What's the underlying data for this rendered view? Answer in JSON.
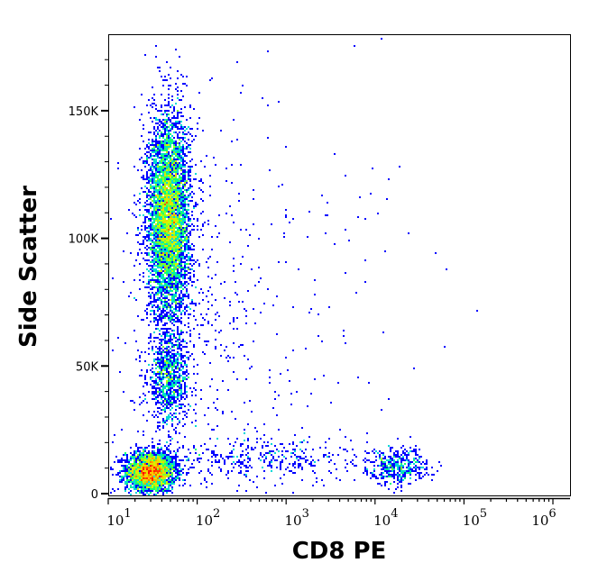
{
  "chart_data": {
    "type": "scatter",
    "subtype": "density-dot-plot",
    "title": "",
    "xlabel": "CD8 PE",
    "ylabel": "Side Scatter",
    "x_scale": "log",
    "xlim": [
      10,
      1500000
    ],
    "ylim": [
      -1000,
      180000
    ],
    "x_ticks": [
      {
        "base": "10",
        "exp": "1",
        "value": 10
      },
      {
        "base": "10",
        "exp": "2",
        "value": 100
      },
      {
        "base": "10",
        "exp": "3",
        "value": 1000
      },
      {
        "base": "10",
        "exp": "4",
        "value": 10000
      },
      {
        "base": "10",
        "exp": "5",
        "value": 100000
      },
      {
        "base": "10",
        "exp": "6",
        "value": 1000000
      }
    ],
    "y_ticks": [
      {
        "label": "0",
        "value": 0
      },
      {
        "label": "50K",
        "value": 50000
      },
      {
        "label": "100K",
        "value": 100000
      },
      {
        "label": "150K",
        "value": 150000
      }
    ],
    "grid": false,
    "legend": "none",
    "color_scale": [
      "#0000ff",
      "#00c8ff",
      "#00ff80",
      "#c8ff00",
      "#ffc800",
      "#ff0000"
    ],
    "populations": [
      {
        "x_center": 30,
        "y_center": 8500,
        "x_log_sd": 0.14,
        "y_sd": 4000,
        "events": 2600
      },
      {
        "x_center": 48,
        "y_center": 45000,
        "x_log_sd": 0.12,
        "y_sd": 9000,
        "events": 900
      },
      {
        "x_center": 48,
        "y_center": 108000,
        "x_log_sd": 0.12,
        "y_sd": 20000,
        "events": 5200
      },
      {
        "x_center": 18000,
        "y_center": 10500,
        "x_log_sd": 0.17,
        "y_sd": 3500,
        "events": 420
      },
      {
        "x_center": 600,
        "y_center": 14000,
        "x_log_sd": 0.6,
        "y_sd": 4500,
        "events": 380
      },
      {
        "x_center": 120,
        "y_center": 70000,
        "x_log_sd": 0.5,
        "y_sd": 40000,
        "events": 450
      },
      {
        "x_center": 2500,
        "y_center": 80000,
        "x_log_sd": 0.8,
        "y_sd": 45000,
        "events": 90
      },
      {
        "x_center": 200,
        "y_center": 180000,
        "x_log_sd": 0.3,
        "y_sd": 0,
        "events": 120
      }
    ]
  }
}
